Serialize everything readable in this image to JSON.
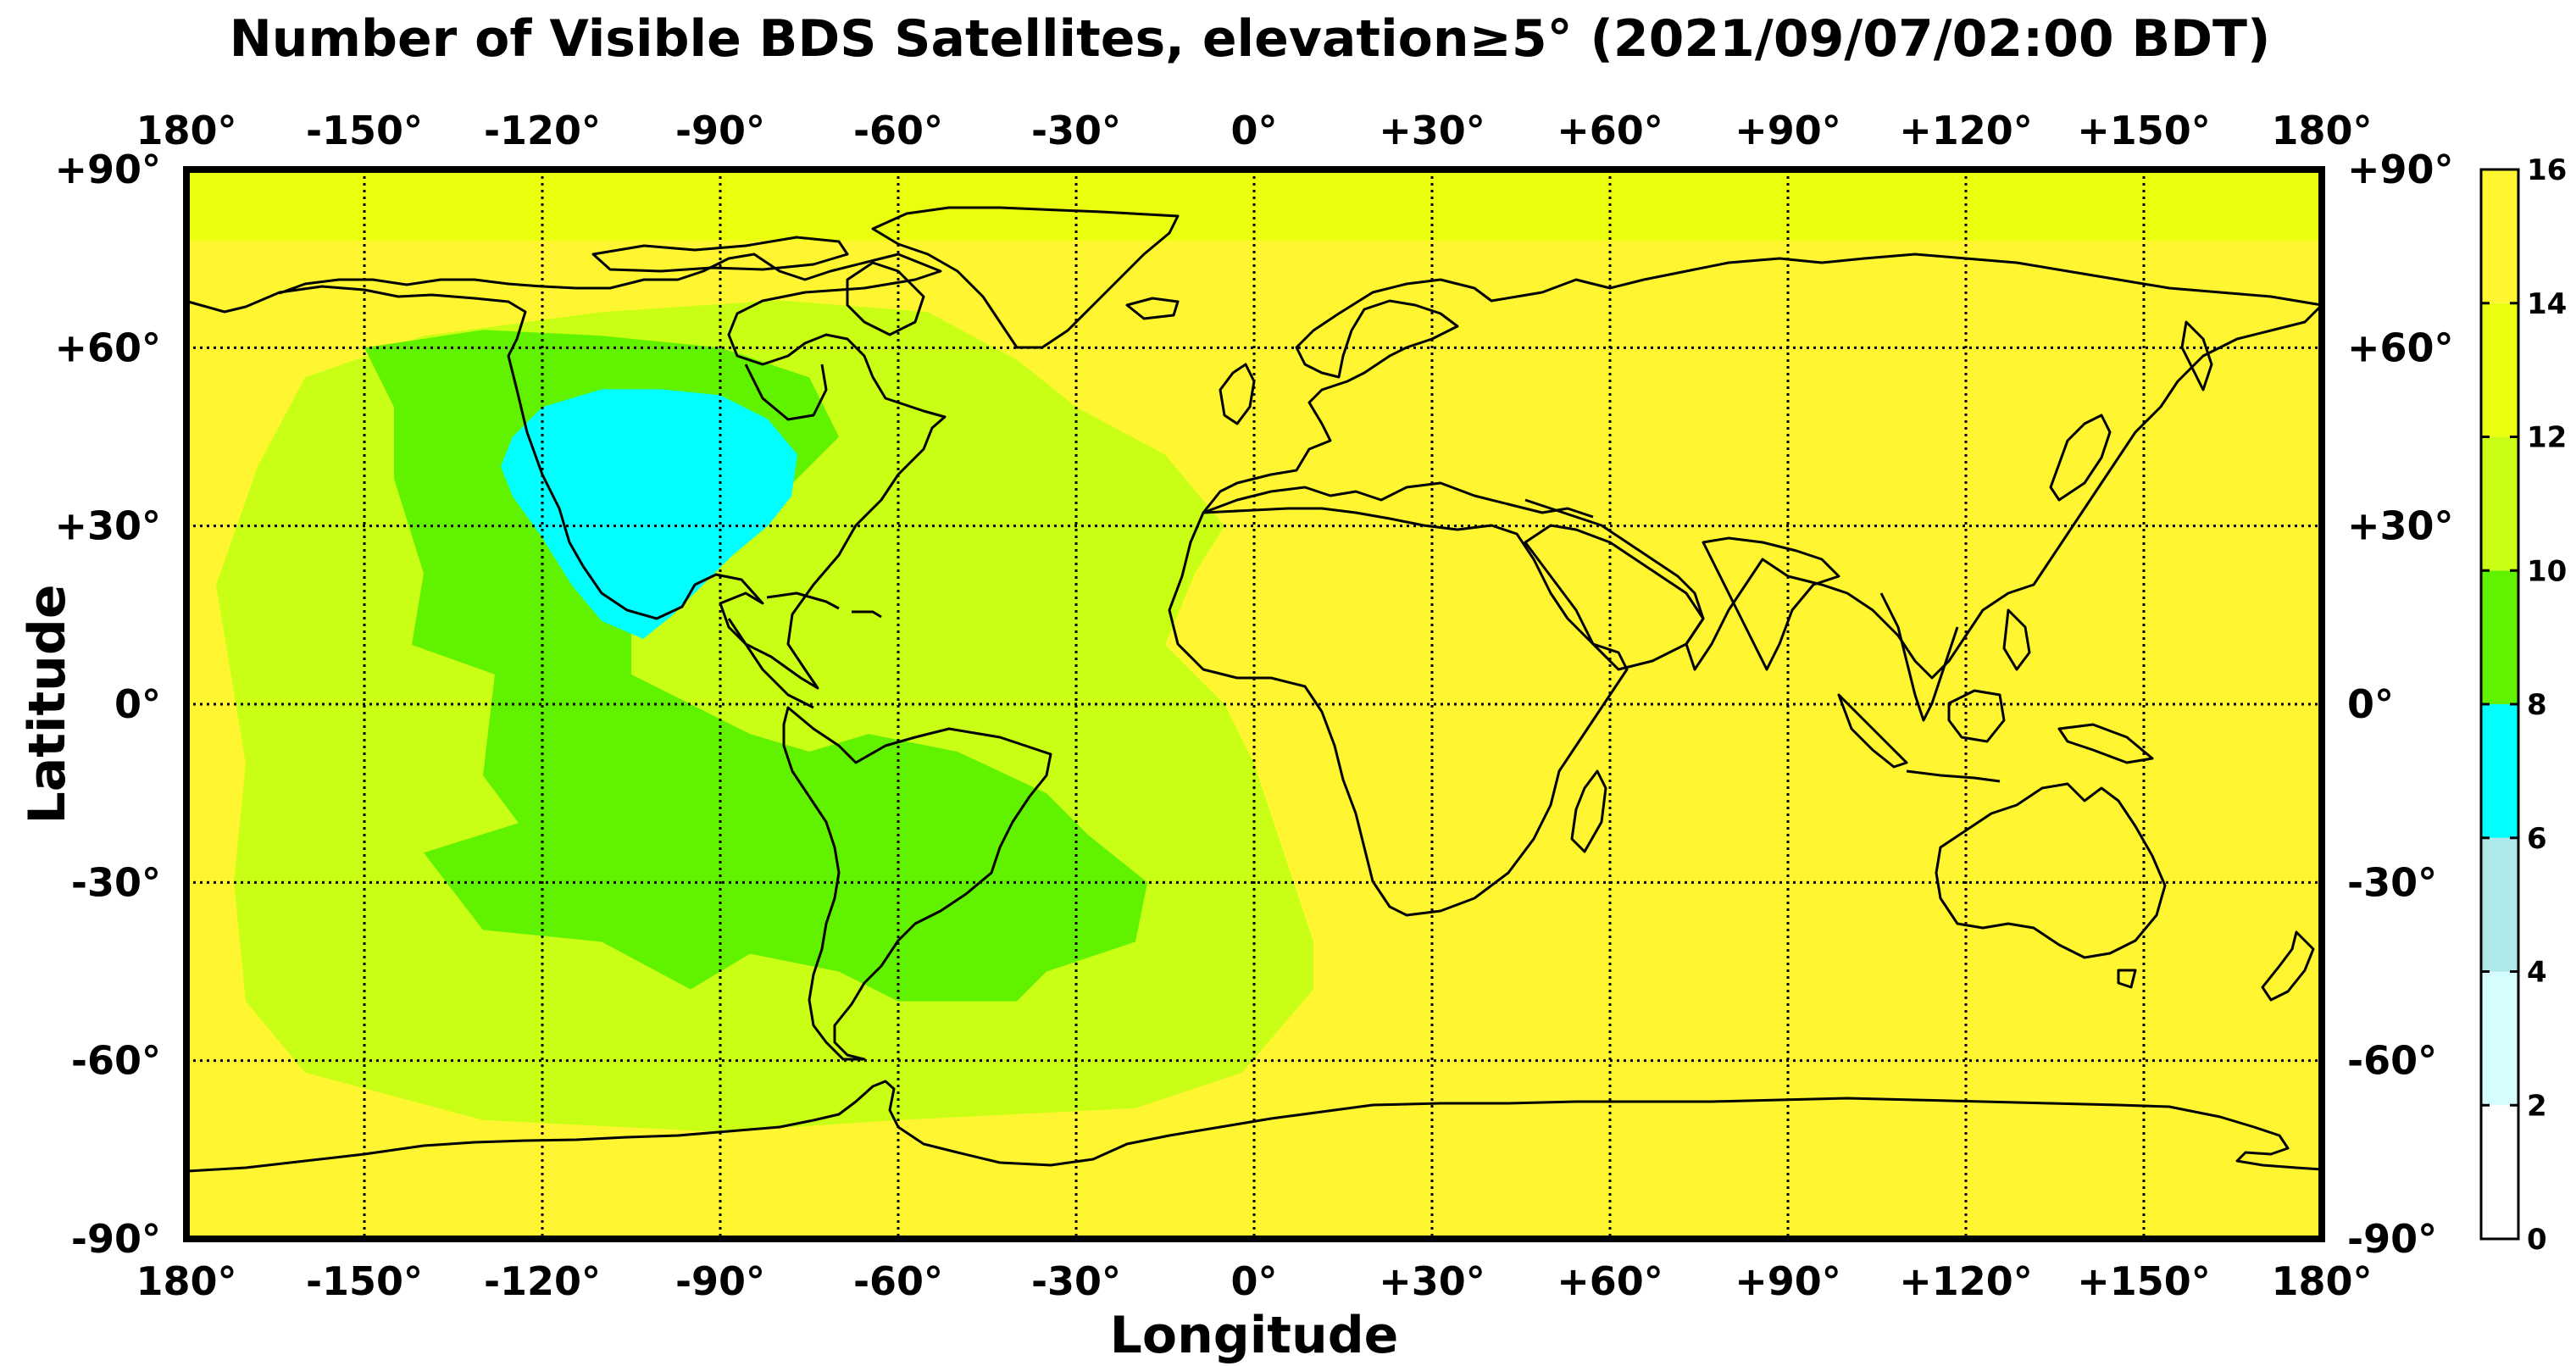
{
  "title": "Number of Visible BDS Satellites, elevation≥5° (2021/09/07/02:00 BDT)",
  "xlabel": "Longitude",
  "ylabel": "Latitude",
  "lon_ticks": [
    "180°",
    "-150°",
    "-120°",
    "-90°",
    "-60°",
    "-30°",
    "0°",
    "+30°",
    "+60°",
    "+90°",
    "+120°",
    "+150°",
    "180°"
  ],
  "lat_ticks": [
    "+90°",
    "+60°",
    "+30°",
    "0°",
    "-30°",
    "-60°",
    "-90°"
  ],
  "colorbar": {
    "ticks": [
      "0",
      "2",
      "4",
      "6",
      "8",
      "10",
      "12",
      "14",
      "16"
    ],
    "bands": [
      {
        "from": 0,
        "to": 2,
        "color": "#ffffff"
      },
      {
        "from": 2,
        "to": 4,
        "color": "#d5fdfd"
      },
      {
        "from": 4,
        "to": 6,
        "color": "#afe8e8"
      },
      {
        "from": 6,
        "to": 8,
        "color": "#00ffff"
      },
      {
        "from": 8,
        "to": 10,
        "color": "#61f200"
      },
      {
        "from": 10,
        "to": 12,
        "color": "#c8ff14"
      },
      {
        "from": 12,
        "to": 14,
        "color": "#eaff10"
      },
      {
        "from": 14,
        "to": 16,
        "color": "#fff530"
      }
    ]
  },
  "chart_data": {
    "type": "heatmap",
    "xlim": [
      -180,
      180
    ],
    "ylim": [
      -90,
      90
    ],
    "grid": true,
    "value_range": [
      0,
      16
    ],
    "background_level": 15,
    "regions": [
      {
        "level": 13,
        "polygon": [
          [
            -180,
            90
          ],
          [
            180,
            90
          ],
          [
            180,
            78
          ],
          [
            -180,
            78
          ]
        ]
      },
      {
        "level": 11,
        "polygon": [
          [
            -170,
            -10
          ],
          [
            -172,
            -30
          ],
          [
            -170,
            -50
          ],
          [
            -160,
            -62
          ],
          [
            -130,
            -70
          ],
          [
            -90,
            -72
          ],
          [
            -60,
            -70
          ],
          [
            -20,
            -68
          ],
          [
            -2,
            -62
          ],
          [
            10,
            -48
          ],
          [
            10,
            -40
          ],
          [
            5,
            -25
          ],
          [
            0,
            -10
          ],
          [
            -5,
            0
          ],
          [
            -15,
            10
          ],
          [
            -10,
            22
          ],
          [
            -5,
            30
          ],
          [
            -15,
            42
          ],
          [
            -30,
            50
          ],
          [
            -40,
            58
          ],
          [
            -55,
            66
          ],
          [
            -80,
            68
          ],
          [
            -110,
            66
          ],
          [
            -140,
            62
          ],
          [
            -160,
            55
          ],
          [
            -168,
            40
          ],
          [
            -175,
            20
          ]
        ]
      },
      {
        "level": 9,
        "polygon": [
          [
            -150,
            60
          ],
          [
            -145,
            50
          ],
          [
            -145,
            38
          ],
          [
            -140,
            22
          ],
          [
            -142,
            10
          ],
          [
            -128,
            5
          ],
          [
            -130,
            -12
          ],
          [
            -124,
            -20
          ],
          [
            -140,
            -25
          ],
          [
            -130,
            -38
          ],
          [
            -110,
            -40
          ],
          [
            -95,
            -48
          ],
          [
            -85,
            -42
          ],
          [
            -70,
            -45
          ],
          [
            -60,
            -50
          ],
          [
            -40,
            -50
          ],
          [
            -35,
            -45
          ],
          [
            -20,
            -40
          ],
          [
            -18,
            -30
          ],
          [
            -28,
            -22
          ],
          [
            -35,
            -15
          ],
          [
            -50,
            -8
          ],
          [
            -65,
            -5
          ],
          [
            -75,
            -8
          ],
          [
            -85,
            -5
          ],
          [
            -95,
            0
          ],
          [
            -105,
            5
          ],
          [
            -105,
            15
          ],
          [
            -90,
            25
          ],
          [
            -80,
            35
          ],
          [
            -70,
            45
          ],
          [
            -75,
            55
          ],
          [
            -90,
            60
          ],
          [
            -110,
            62
          ],
          [
            -130,
            63
          ]
        ]
      },
      {
        "level": 7,
        "polygon": [
          [
            -125,
            45
          ],
          [
            -120,
            50
          ],
          [
            -110,
            53
          ],
          [
            -100,
            53
          ],
          [
            -90,
            52
          ],
          [
            -82,
            48
          ],
          [
            -77,
            42
          ],
          [
            -78,
            35
          ],
          [
            -82,
            30
          ],
          [
            -88,
            25
          ],
          [
            -93,
            20
          ],
          [
            -98,
            15
          ],
          [
            -103,
            11
          ],
          [
            -110,
            14
          ],
          [
            -115,
            20
          ],
          [
            -120,
            28
          ],
          [
            -125,
            35
          ],
          [
            -127,
            40
          ]
        ]
      }
    ]
  }
}
